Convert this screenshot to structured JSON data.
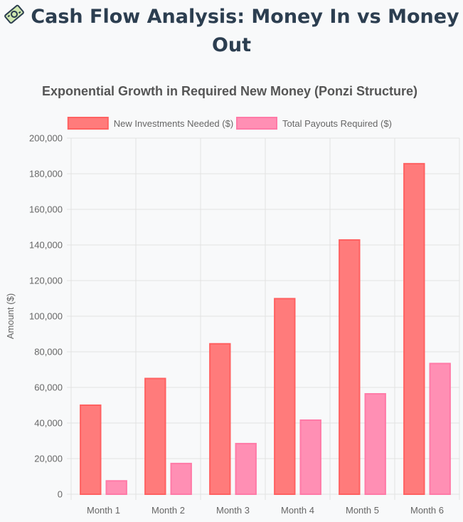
{
  "page": {
    "heading_line1": "Cash Flow Analysis: Money In vs Money",
    "heading_line2": "Out",
    "heading_icon": "money-bag-icon"
  },
  "chart_data": {
    "type": "bar",
    "title": "Exponential Growth in Required New Money (Ponzi Structure)",
    "categories": [
      "Month 1",
      "Month 2",
      "Month 3",
      "Month 4",
      "Month 5",
      "Month 6"
    ],
    "series": [
      {
        "name": "New Investments Needed ($)",
        "values": [
          50000,
          65000,
          84500,
          109850,
          142805,
          185647
        ],
        "fill": "#ff7b7b",
        "stroke": "#ff6161"
      },
      {
        "name": "Total Payouts Required ($)",
        "values": [
          7500,
          17250,
          28425,
          41603,
          56386,
          73410
        ],
        "fill": "#ff8fb4",
        "stroke": "#ff7aa7"
      }
    ],
    "xlabel": "",
    "ylabel": "Amount ($)",
    "ylim": [
      0,
      200000
    ],
    "ytick_step": 20000,
    "ytick_labels": [
      "0",
      "20,000",
      "40,000",
      "60,000",
      "80,000",
      "100,000",
      "120,000",
      "140,000",
      "160,000",
      "180,000",
      "200,000"
    ],
    "grid": true,
    "legend": "top-center"
  }
}
